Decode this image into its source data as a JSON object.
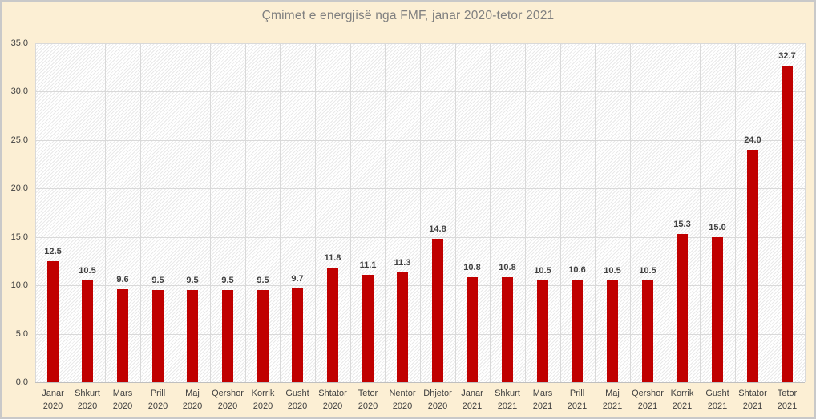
{
  "window": {
    "title": "Çmimet e energjisë nga FMF, janar 2020-tetor 2021"
  },
  "chart_data": {
    "type": "bar",
    "title": "Çmimet e energjisë nga FMF, janar 2020-tetor 2021",
    "categories": [
      "Janar 2020",
      "Shkurt 2020",
      "Mars 2020",
      "Prill 2020",
      "Maj 2020",
      "Qershor 2020",
      "Korrik 2020",
      "Gusht 2020",
      "Shtator 2020",
      "Tetor 2020",
      "Nentor 2020",
      "Dhjetor 2020",
      "Janar 2021",
      "Shkurt 2021",
      "Mars 2021",
      "Prill 2021",
      "Maj 2021",
      "Qershor 2021",
      "Korrik 2021",
      "Gusht 2021",
      "Shtator 2021",
      "Tetor 2021"
    ],
    "values": [
      12.5,
      10.5,
      9.6,
      9.5,
      9.5,
      9.5,
      9.5,
      9.7,
      11.8,
      11.1,
      11.3,
      14.8,
      10.8,
      10.8,
      10.5,
      10.6,
      10.5,
      10.5,
      15.3,
      15.0,
      24.0,
      32.7
    ],
    "data_labels": [
      "12.5",
      "10.5",
      "9.6",
      "9.5",
      "9.5",
      "9.5",
      "9.5",
      "9.7",
      "11.8",
      "11.1",
      "11.3",
      "14.8",
      "10.8",
      "10.8",
      "10.5",
      "10.6",
      "10.5",
      "10.5",
      "15.3",
      "15.0",
      "24.0",
      "32.7"
    ],
    "xlabel": "",
    "ylabel": "",
    "ylim": [
      0,
      35
    ],
    "ytick_step": 5,
    "ytick_labels": [
      "0.0",
      "5.0",
      "10.0",
      "15.0",
      "20.0",
      "25.0",
      "30.0",
      "35.0"
    ],
    "grid": "horizontal and vertical gridlines on, hatched plot background",
    "legend_position": "none",
    "colors": {
      "bar": "#C00000",
      "chart_background": "#FCEFD4",
      "plot_background": "#FFFFFF",
      "gridline": "#D9D9D9",
      "axis_line": "#BFBFBF",
      "title_text": "#808080",
      "tick_text": "#404040",
      "data_label_text": "#404040",
      "chart_border": "#C9C9C9"
    }
  }
}
